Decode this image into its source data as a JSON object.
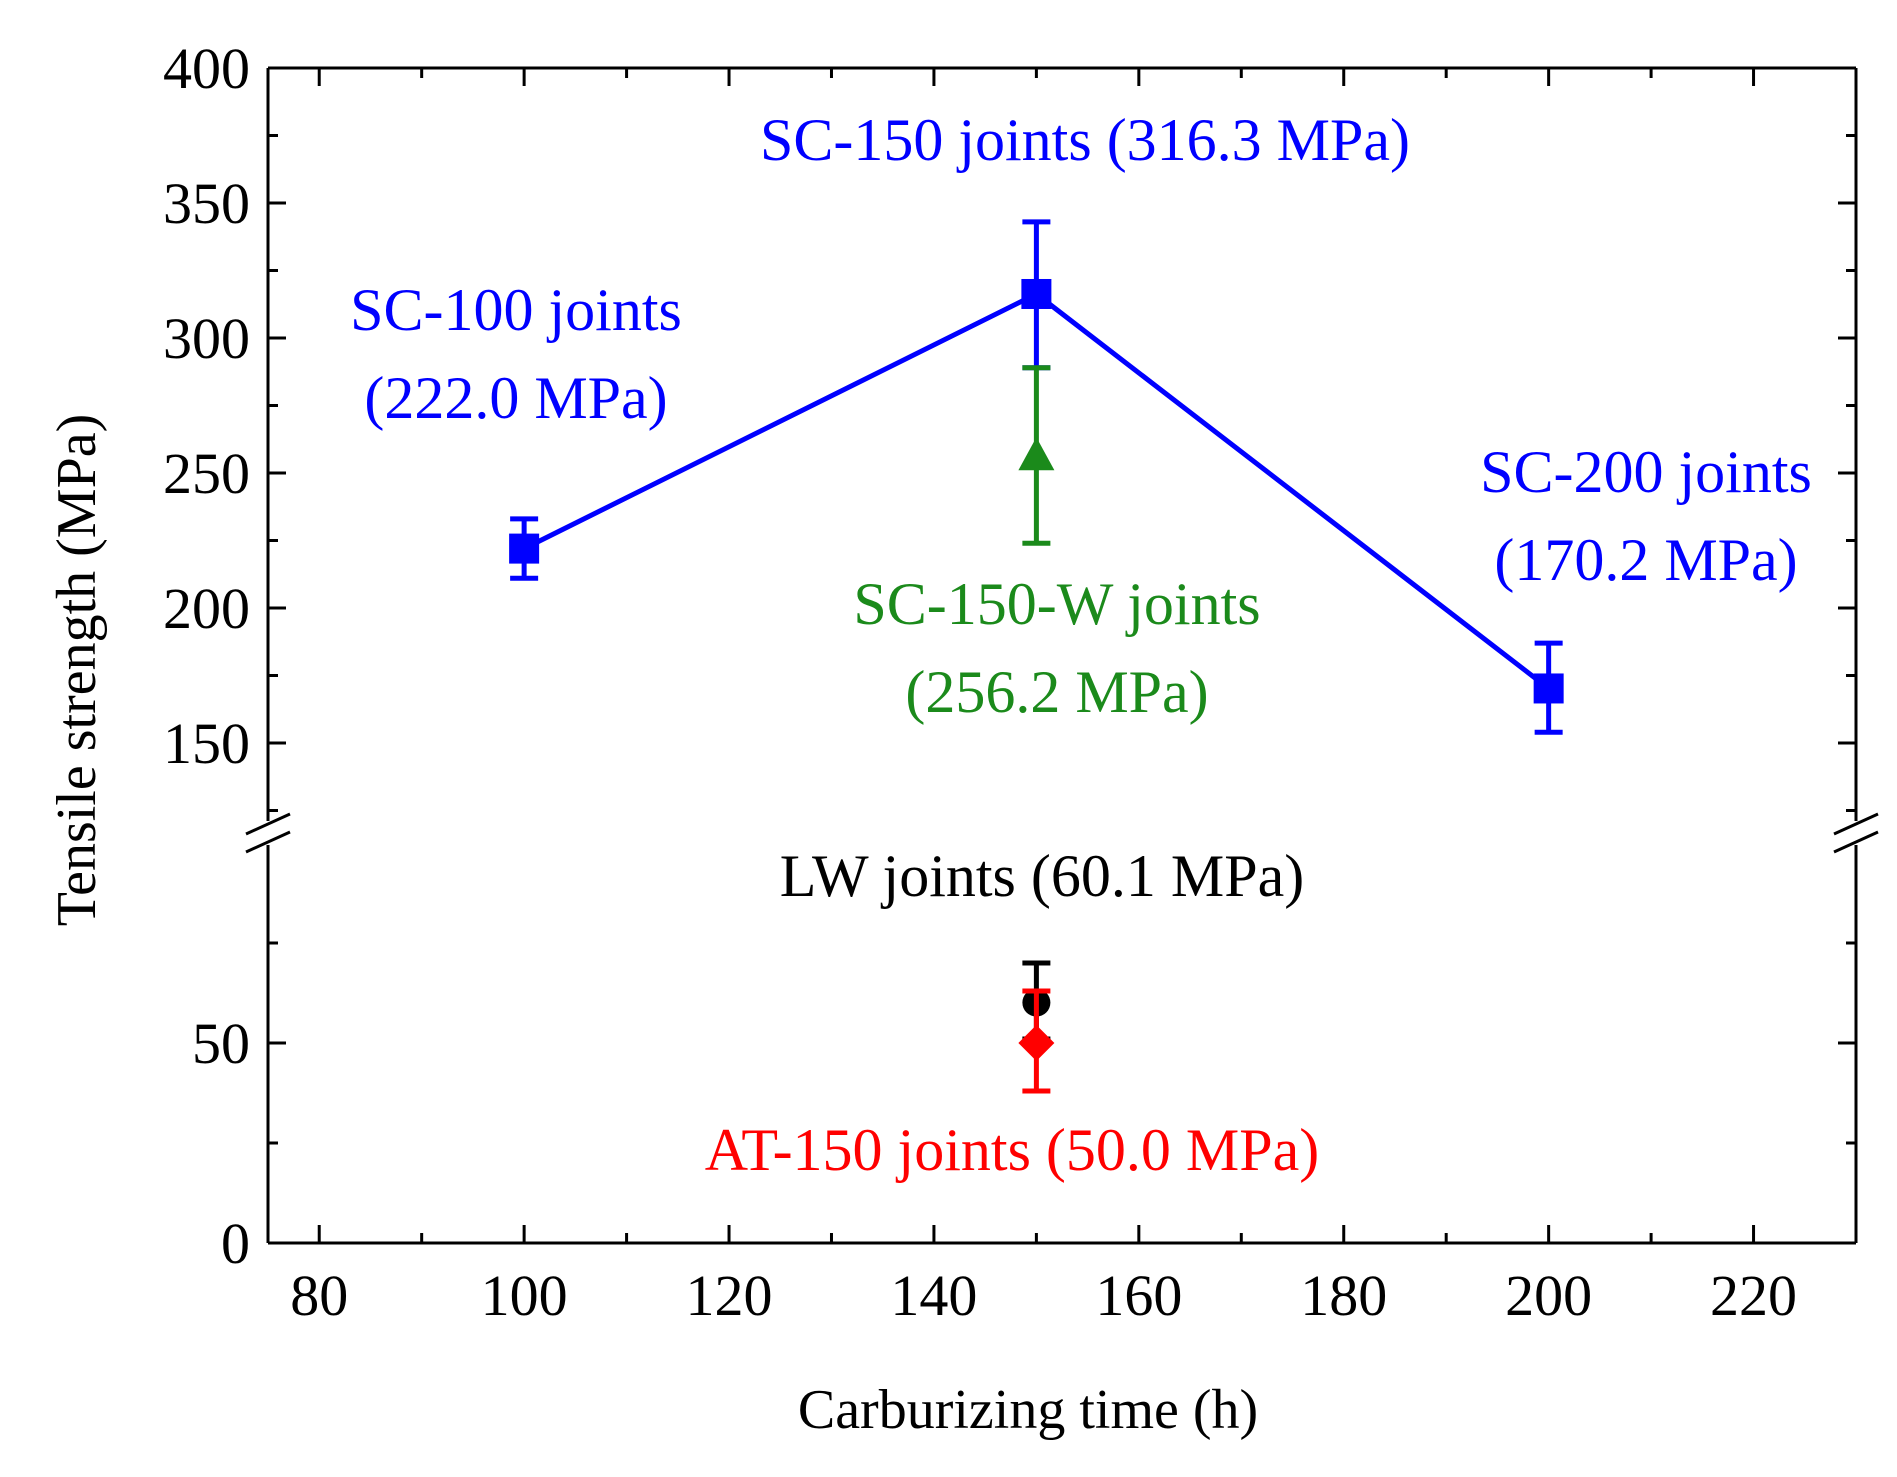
{
  "chart_data": {
    "type": "scatter",
    "xlabel": "Carburizing time (h)",
    "ylabel": "Tensile strength (MPa)",
    "xlim": [
      75,
      230
    ],
    "x_ticks": [
      80,
      100,
      120,
      140,
      160,
      180,
      200,
      220
    ],
    "y_axis": {
      "broken": true,
      "lower_segment": {
        "range": [
          0,
          100
        ],
        "ticks": [
          0,
          50
        ]
      },
      "upper_segment": {
        "range": [
          125,
          400
        ],
        "ticks": [
          150,
          200,
          250,
          300,
          350,
          400
        ]
      }
    },
    "grid": false,
    "series": [
      {
        "key": "sc",
        "color": "#0000ff",
        "marker": "square",
        "line": true,
        "points": [
          {
            "x": 100,
            "y": 222.0,
            "err_low": 211,
            "err_high": 233
          },
          {
            "x": 150,
            "y": 316.3,
            "err_low": 289,
            "err_high": 343
          },
          {
            "x": 200,
            "y": 170.2,
            "err_low": 154,
            "err_high": 187
          }
        ]
      },
      {
        "key": "scw",
        "color": "#1b8a1b",
        "marker": "triangle",
        "line": false,
        "points": [
          {
            "x": 150,
            "y": 256.2,
            "err_low": 224,
            "err_high": 289
          }
        ]
      },
      {
        "key": "lw",
        "color": "#000000",
        "marker": "circle",
        "line": false,
        "points": [
          {
            "x": 150,
            "y": 60.1,
            "err_low": 51,
            "err_high": 70
          }
        ]
      },
      {
        "key": "at",
        "color": "#ff0000",
        "marker": "diamond",
        "line": false,
        "points": [
          {
            "x": 150,
            "y": 50.0,
            "err_low": 38,
            "err_high": 63
          }
        ]
      }
    ],
    "annotations": {
      "sc150": {
        "lines": [
          "SC-150 joints (316.3 MPa)"
        ],
        "color": "#0000ff"
      },
      "sc100": {
        "lines": [
          "SC-100 joints",
          "(222.0 MPa)"
        ],
        "color": "#0000ff"
      },
      "sc200": {
        "lines": [
          "SC-200 joints",
          "(170.2 MPa)"
        ],
        "color": "#0000ff"
      },
      "scw150": {
        "lines": [
          "SC-150-W joints",
          "(256.2 MPa)"
        ],
        "color": "#1b8a1b"
      },
      "lw": {
        "lines": [
          "LW joints (60.1 MPa)"
        ],
        "color": "#000000"
      },
      "at150": {
        "lines": [
          "AT-150 joints (50.0 MPa)"
        ],
        "color": "#ff0000"
      }
    }
  }
}
